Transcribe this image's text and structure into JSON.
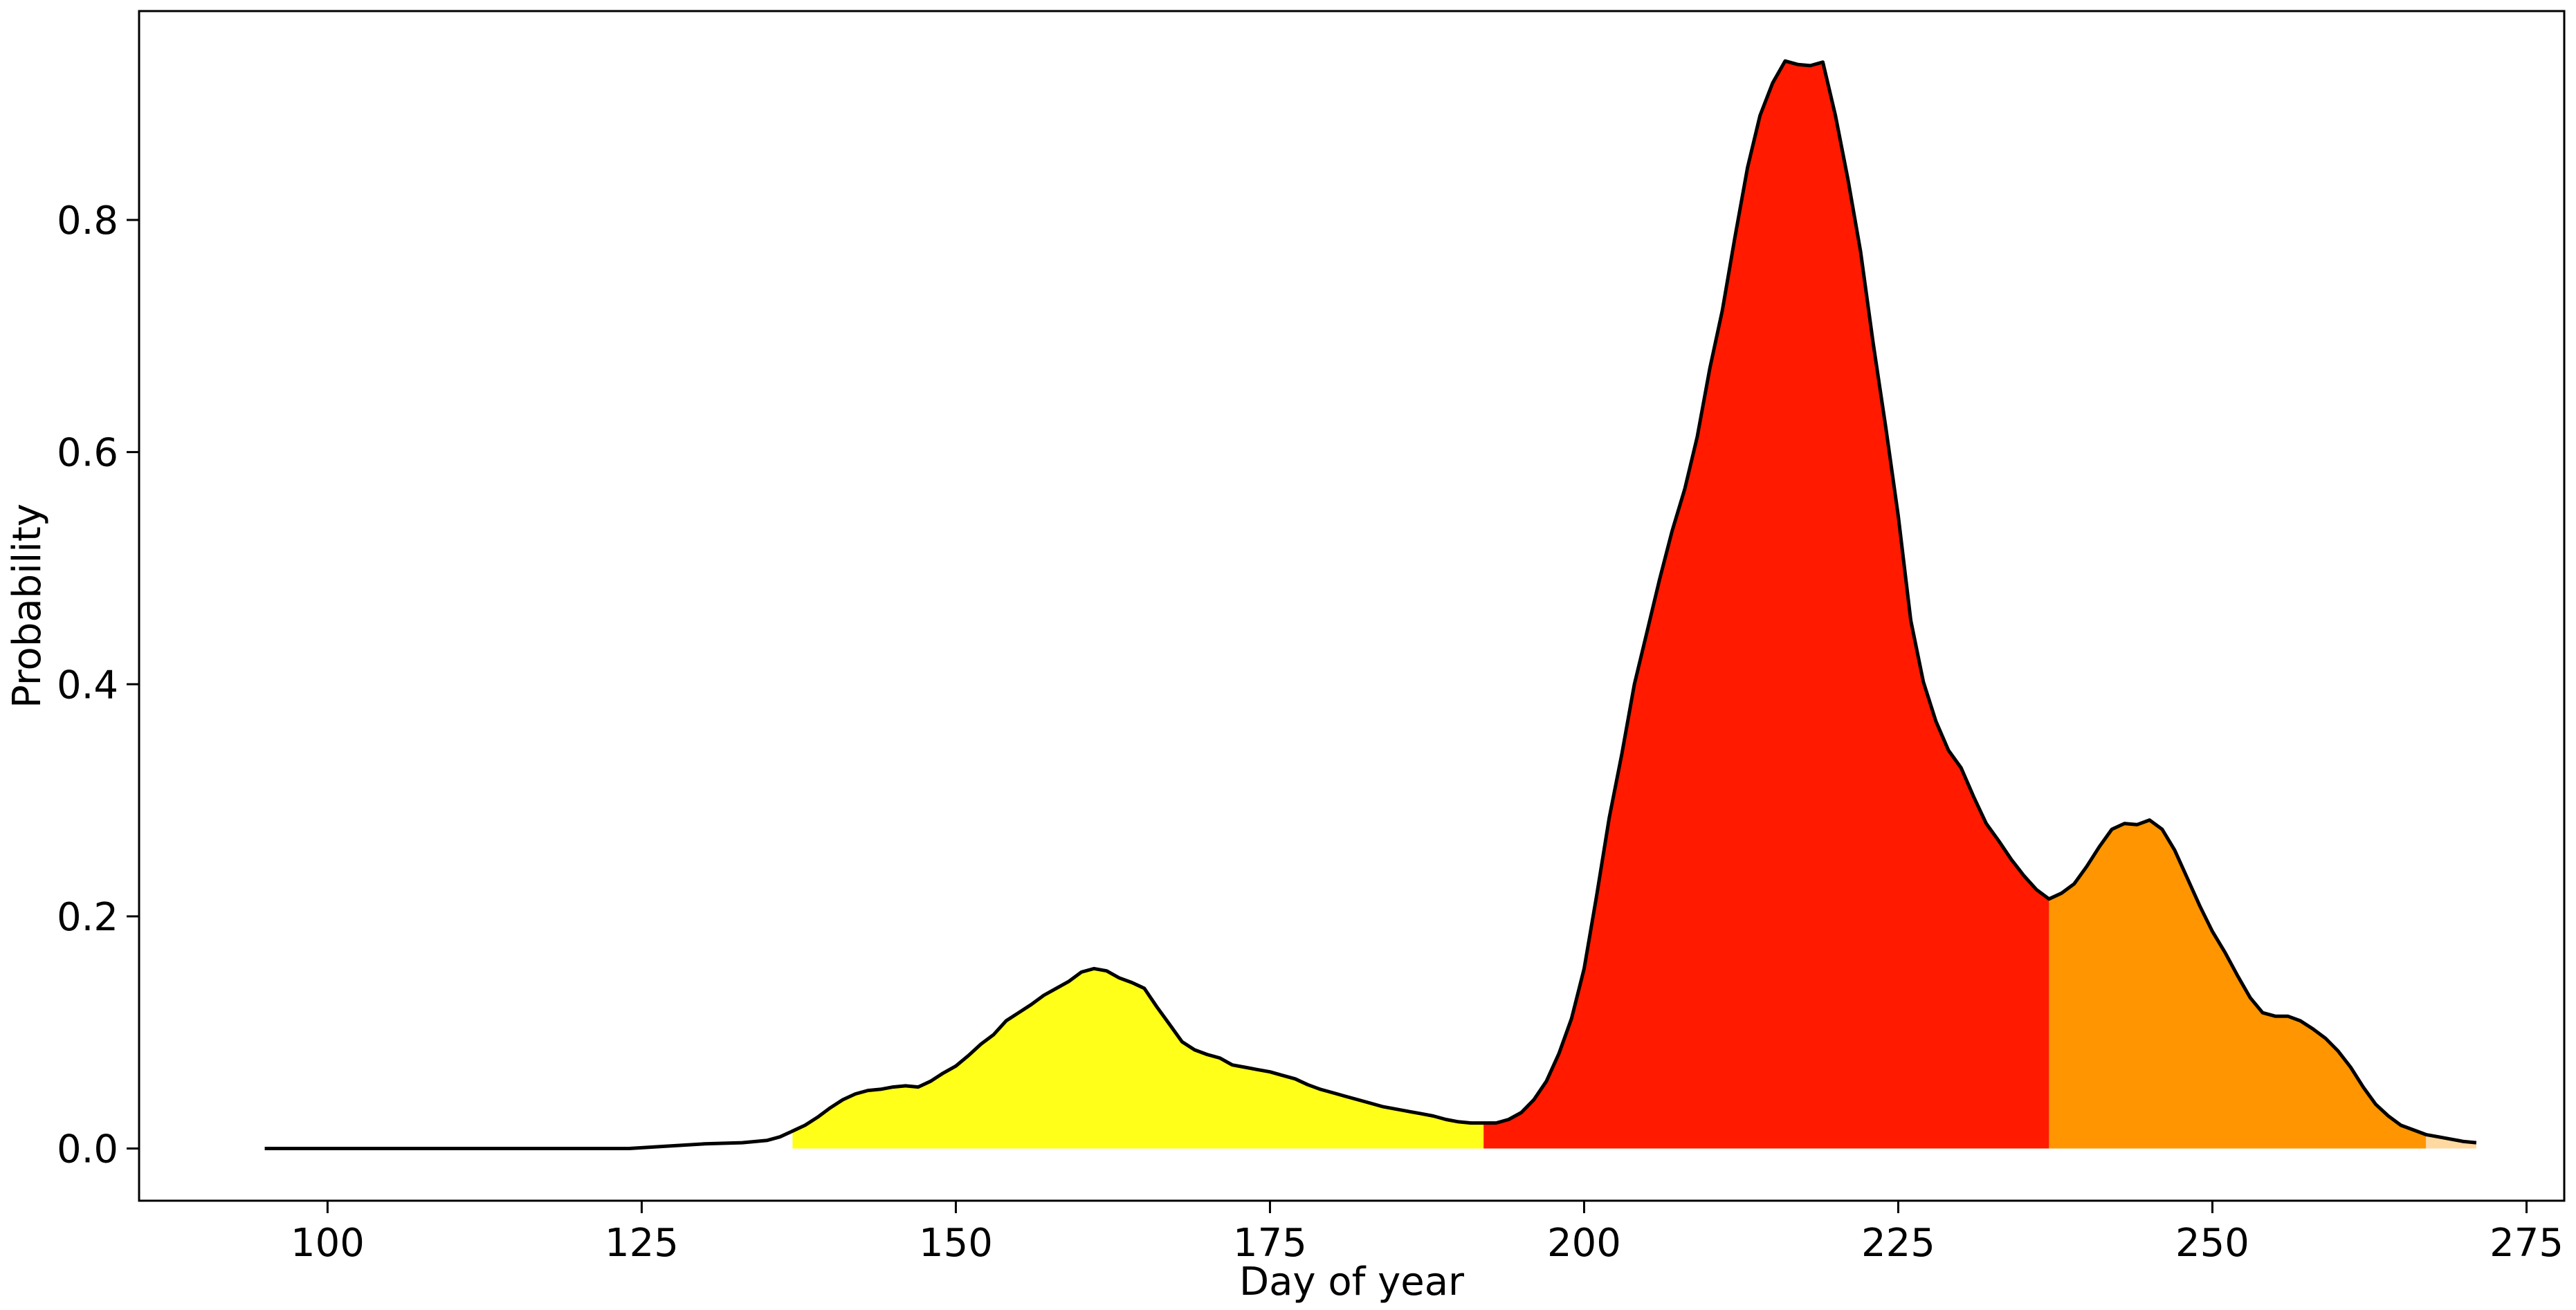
{
  "chart_data": {
    "type": "area",
    "title": "",
    "xlabel": "Day of year",
    "ylabel": "Probability",
    "xlim": [
      85,
      278
    ],
    "ylim": [
      -0.045,
      0.98
    ],
    "xticks": [
      100,
      125,
      150,
      175,
      200,
      225,
      250,
      275
    ],
    "xtick_labels": [
      "100",
      "125",
      "150",
      "175",
      "200",
      "225",
      "250",
      "275"
    ],
    "yticks": [
      0.0,
      0.2,
      0.4,
      0.6,
      0.8
    ],
    "ytick_labels": [
      "0.0",
      "0.2",
      "0.4",
      "0.6",
      "0.8"
    ],
    "grid": false,
    "legend": "none",
    "line_color": "#000000",
    "curve": {
      "x": [
        95,
        100,
        105,
        110,
        115,
        120,
        124,
        127,
        130,
        133,
        135,
        136,
        137,
        138,
        139,
        140,
        141,
        142,
        143,
        144,
        145,
        146,
        147,
        148,
        149,
        150,
        151,
        152,
        153,
        154,
        155,
        156,
        157,
        158,
        159,
        160,
        161,
        162,
        163,
        164,
        165,
        166,
        167,
        168,
        169,
        170,
        171,
        172,
        173,
        174,
        175,
        176,
        177,
        178,
        179,
        180,
        181,
        182,
        183,
        184,
        185,
        186,
        187,
        188,
        189,
        190,
        191,
        192,
        193,
        194,
        195,
        196,
        197,
        198,
        199,
        200,
        201,
        202,
        203,
        204,
        205,
        206,
        207,
        208,
        209,
        210,
        211,
        212,
        213,
        214,
        215,
        216,
        217,
        218,
        219,
        220,
        221,
        222,
        223,
        224,
        225,
        226,
        227,
        228,
        229,
        230,
        231,
        232,
        233,
        234,
        235,
        236,
        237,
        238,
        239,
        240,
        241,
        242,
        243,
        244,
        245,
        246,
        247,
        248,
        249,
        250,
        251,
        252,
        253,
        254,
        255,
        256,
        257,
        258,
        259,
        260,
        261,
        262,
        263,
        264,
        265,
        266,
        267,
        268,
        269,
        270,
        271
      ],
      "y": [
        0.0,
        0.0,
        0.0,
        0.0,
        0.0,
        0.0,
        0.0,
        0.002,
        0.004,
        0.005,
        0.007,
        0.01,
        0.015,
        0.02,
        0.027,
        0.035,
        0.042,
        0.047,
        0.05,
        0.051,
        0.053,
        0.054,
        0.053,
        0.058,
        0.065,
        0.071,
        0.08,
        0.09,
        0.098,
        0.11,
        0.117,
        0.124,
        0.132,
        0.138,
        0.144,
        0.152,
        0.155,
        0.153,
        0.147,
        0.143,
        0.138,
        0.122,
        0.107,
        0.092,
        0.085,
        0.081,
        0.078,
        0.072,
        0.07,
        0.068,
        0.066,
        0.063,
        0.06,
        0.055,
        0.051,
        0.048,
        0.045,
        0.042,
        0.039,
        0.036,
        0.034,
        0.032,
        0.03,
        0.028,
        0.025,
        0.023,
        0.022,
        0.022,
        0.022,
        0.025,
        0.031,
        0.042,
        0.058,
        0.082,
        0.112,
        0.155,
        0.218,
        0.285,
        0.34,
        0.4,
        0.445,
        0.49,
        0.532,
        0.568,
        0.613,
        0.672,
        0.722,
        0.785,
        0.845,
        0.89,
        0.918,
        0.937,
        0.934,
        0.933,
        0.936,
        0.89,
        0.835,
        0.773,
        0.694,
        0.622,
        0.545,
        0.455,
        0.402,
        0.368,
        0.343,
        0.328,
        0.303,
        0.28,
        0.265,
        0.249,
        0.235,
        0.223,
        0.215,
        0.22,
        0.228,
        0.243,
        0.26,
        0.275,
        0.28,
        0.279,
        0.283,
        0.275,
        0.257,
        0.233,
        0.209,
        0.187,
        0.169,
        0.149,
        0.13,
        0.117,
        0.114,
        0.114,
        0.11,
        0.103,
        0.095,
        0.084,
        0.07,
        0.053,
        0.038,
        0.028,
        0.02,
        0.016,
        0.012,
        0.01,
        0.008,
        0.006,
        0.005
      ]
    },
    "shaded_regions": [
      {
        "x_start": 137,
        "x_end": 192,
        "color": "#ffff19"
      },
      {
        "x_start": 192,
        "x_end": 237,
        "color": "#ff1a00"
      },
      {
        "x_start": 237,
        "x_end": 267,
        "color": "#ff9500"
      },
      {
        "x_start": 267,
        "x_end": 271,
        "color": "#ffd9a0"
      }
    ]
  }
}
